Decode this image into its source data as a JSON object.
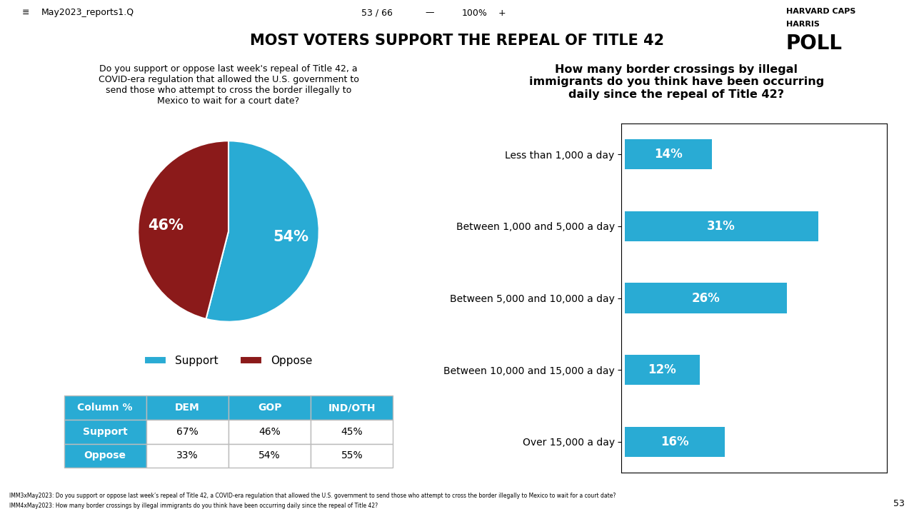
{
  "chart_data": [
    {
      "type": "pie",
      "title": "MOST VOTERS SUPPORT THE REPEAL OF TITLE 42",
      "subtitle": "Do you support or oppose last week's repeal of Title 42, a\nCOVID-era regulation that allowed the U.S. government to\nsend those who attempt to cross the border illegally to\nMexico to wait for a court date?",
      "categories": [
        "Support",
        "Oppose"
      ],
      "values": [
        54,
        46
      ],
      "value_labels": [
        "54%",
        "46%"
      ],
      "colors": [
        "#29ABD4",
        "#8B1A1A"
      ],
      "data_labels": true,
      "legend": "lower center",
      "annotations": [
        "≡",
        "May2023_reports1.Q",
        "53 / 66",
        "—",
        "100%",
        "+",
        "HARVARD CAPS",
        "HARRIS",
        "POLL",
        "IMM3xMay2023: Do you support or oppose last week’s repeal of Title 42, a COVID-era regulation that allowed the U.S. government to send those who attempt to cross the border illegally to Mexico to wait for a court date?",
        "IMM4xMay2023: How many border crossings by illegal immigrants do you think have been occurring daily since the repeal of Title 42?",
        "53"
      ]
    },
    {
      "type": "table",
      "ylabel": "Column %",
      "categories": [
        "Support",
        "Oppose"
      ],
      "series": [
        {
          "name": "DEM",
          "values": [
            67,
            33
          ],
          "value_labels": [
            "67%",
            "33%"
          ]
        },
        {
          "name": "GOP",
          "values": [
            46,
            54
          ],
          "value_labels": [
            "46%",
            "54%"
          ]
        },
        {
          "name": "IND/OTH",
          "values": [
            45,
            55
          ],
          "value_labels": [
            "45%",
            "55%"
          ]
        }
      ],
      "color": "#29ABD4"
    },
    {
      "type": "bar",
      "orientation": "horizontal",
      "title": "How many border crossings by illegal\nimmigrants do you think have been occurring\ndaily since the repeal of Title 42?",
      "categories": [
        "Less than 1,000 a day",
        "Between 1,000 and 5,000 a day",
        "Between 5,000 and 10,000 a day",
        "Between 10,000 and 15,000 a day",
        "Over 15,000 a day"
      ],
      "values": [
        14,
        31,
        26,
        12,
        16
      ],
      "value_labels": [
        "14%",
        "31%",
        "26%",
        "12%",
        "16%"
      ],
      "color": "#29ABD4",
      "xlim": [
        -0.5,
        42
      ],
      "xticks": [],
      "data_labels": true,
      "tick_labels": "y",
      "grid": false
    }
  ]
}
